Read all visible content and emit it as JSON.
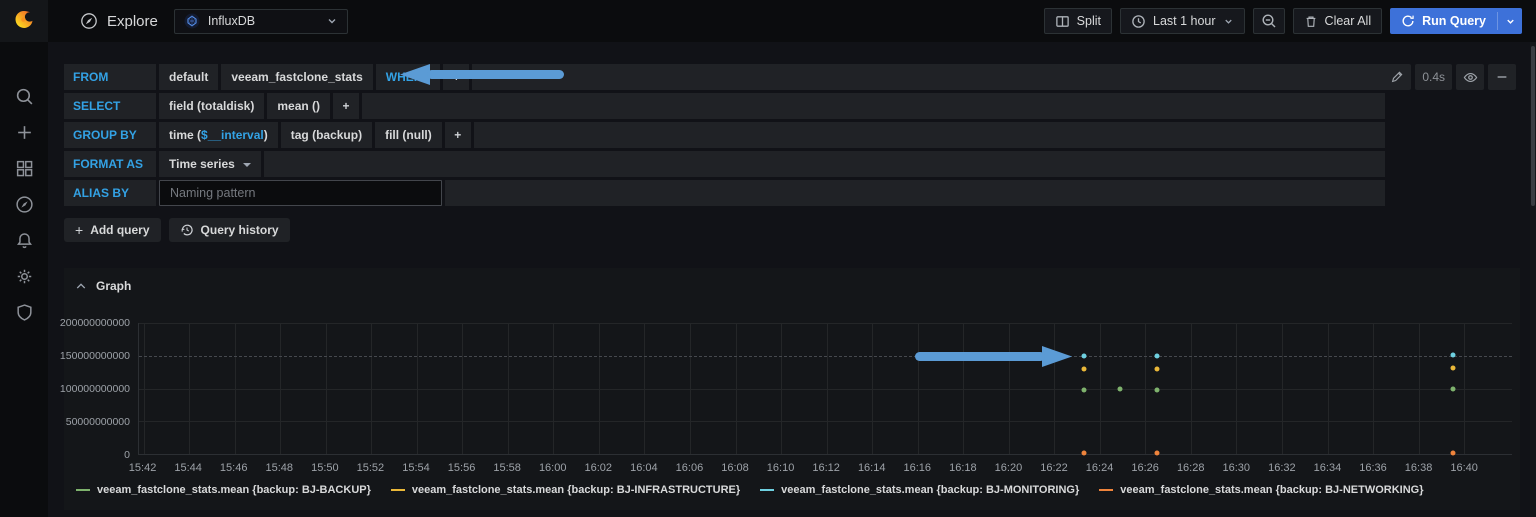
{
  "colors": {
    "keyword_blue": "#33a2e5",
    "run_button": "#3d71d9",
    "page_background": "#111217",
    "segment_background": "#202226"
  },
  "sidebar": {
    "logo_icon": "grafana-logo",
    "icons": [
      "search",
      "add",
      "dashboards",
      "explore",
      "alerting",
      "configuration",
      "server-admin"
    ]
  },
  "topnav": {
    "page_icon": "compass-icon",
    "title": "Explore",
    "datasource": {
      "icon": "influxdb-logo",
      "name": "InfluxDB"
    },
    "split": "Split",
    "time_range": "Last 1 hour",
    "zoom_out_icon": "magnifier-minus-icon",
    "clear_all": "Clear All",
    "run_query": "Run Query"
  },
  "query": {
    "from": {
      "label": "FROM",
      "segments": [
        "default",
        "veeam_fastclone_stats"
      ],
      "where": "WHERE",
      "add": "+"
    },
    "select": {
      "label": "SELECT",
      "segments": [
        "field (totaldisk)",
        "mean ()"
      ],
      "add": "+"
    },
    "group_by": {
      "label": "GROUP BY",
      "time_prefix": "time (",
      "time_var": "$__interval",
      "time_suffix": ")",
      "segments": [
        "tag (backup)",
        "fill (null)"
      ],
      "add": "+"
    },
    "format_as": {
      "label": "FORMAT AS",
      "value": "Time series"
    },
    "alias_by": {
      "label": "ALIAS BY",
      "placeholder": "Naming pattern",
      "value": ""
    },
    "toolbar": {
      "duration": "0.4s"
    },
    "actions": {
      "add_icon": "+",
      "add_query": "Add query",
      "query_history": "Query history"
    }
  },
  "graph_panel": {
    "title": "Graph"
  },
  "chart_data": {
    "type": "scatter",
    "title": "Graph",
    "x_axis": {
      "unit": "time",
      "domain_minutes": [
        941.8,
        1002.1
      ],
      "ticks": [
        "15:42",
        "15:44",
        "15:46",
        "15:48",
        "15:50",
        "15:52",
        "15:54",
        "15:56",
        "15:58",
        "16:00",
        "16:02",
        "16:04",
        "16:06",
        "16:08",
        "16:10",
        "16:12",
        "16:14",
        "16:16",
        "16:18",
        "16:20",
        "16:22",
        "16:24",
        "16:26",
        "16:28",
        "16:30",
        "16:32",
        "16:34",
        "16:36",
        "16:38",
        "16:40"
      ]
    },
    "y_axis": {
      "lim": [
        0,
        200000000000
      ],
      "ticks": [
        {
          "label": "200000000000",
          "value": 200000000000,
          "dashed": false
        },
        {
          "label": "150000000000",
          "value": 150000000000,
          "dashed": true
        },
        {
          "label": "100000000000",
          "value": 100000000000,
          "dashed": false
        },
        {
          "label": "50000000000",
          "value": 50000000000,
          "dashed": false
        },
        {
          "label": "0",
          "value": 0,
          "dashed": false
        }
      ]
    },
    "series": [
      {
        "name": "veeam_fastclone_stats.mean {backup: BJ-BACKUP}",
        "color": "#7EB26D",
        "points": [
          {
            "t_min": 983.3,
            "value": 98000000000
          },
          {
            "t_min": 984.9,
            "value": 99000000000
          },
          {
            "t_min": 986.5,
            "value": 98000000000
          },
          {
            "t_min": 999.5,
            "value": 100000000000
          }
        ]
      },
      {
        "name": "veeam_fastclone_stats.mean {backup: BJ-INFRASTRUCTURE}",
        "color": "#EAB839",
        "points": [
          {
            "t_min": 983.3,
            "value": 130000000000
          },
          {
            "t_min": 986.5,
            "value": 130000000000
          },
          {
            "t_min": 999.5,
            "value": 132000000000
          }
        ]
      },
      {
        "name": "veeam_fastclone_stats.mean {backup: BJ-MONITORING}",
        "color": "#6ED0E0",
        "points": [
          {
            "t_min": 983.3,
            "value": 150000000000
          },
          {
            "t_min": 986.5,
            "value": 150000000000
          },
          {
            "t_min": 999.5,
            "value": 151000000000
          }
        ]
      },
      {
        "name": "veeam_fastclone_stats.mean {backup: BJ-NETWORKING}",
        "color": "#EF843C",
        "points": [
          {
            "t_min": 983.3,
            "value": 2000000000
          },
          {
            "t_min": 986.5,
            "value": 2000000000
          },
          {
            "t_min": 999.5,
            "value": 2000000000
          }
        ]
      }
    ],
    "legend_position": "bottom",
    "grid": true
  },
  "annotations": {
    "arrow_color": "#5b9bd5",
    "items": [
      {
        "name": "query-where-arrow",
        "direction": "left",
        "target": "WHERE add button"
      },
      {
        "name": "graph-data-arrow",
        "direction": "right",
        "target": "data points at 16:23"
      }
    ]
  }
}
